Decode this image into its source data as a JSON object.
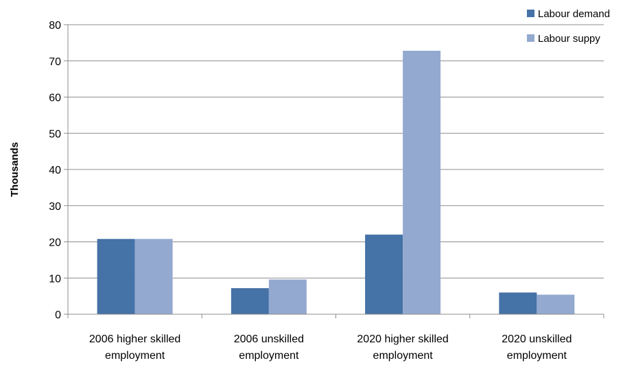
{
  "chart_data": {
    "type": "bar",
    "title": "",
    "xlabel": "",
    "ylabel": "Thousands",
    "ylim": [
      0,
      80
    ],
    "yticks": [
      0,
      10,
      20,
      30,
      40,
      50,
      60,
      70,
      80
    ],
    "grid": true,
    "legend_position": "top-right",
    "categories": [
      [
        "2006 higher skilled",
        "employment"
      ],
      [
        "2006 unskilled",
        "employment"
      ],
      [
        "2020 higher skilled",
        "employment"
      ],
      [
        "2020 unskilled",
        "employment"
      ]
    ],
    "series": [
      {
        "name": "Labour demand",
        "color": "#4572A7",
        "values": [
          20.8,
          7.2,
          22.0,
          6.0
        ]
      },
      {
        "name": "Labour suppy",
        "color": "#93A9D0",
        "values": [
          20.8,
          9.6,
          72.8,
          5.4
        ]
      }
    ]
  }
}
